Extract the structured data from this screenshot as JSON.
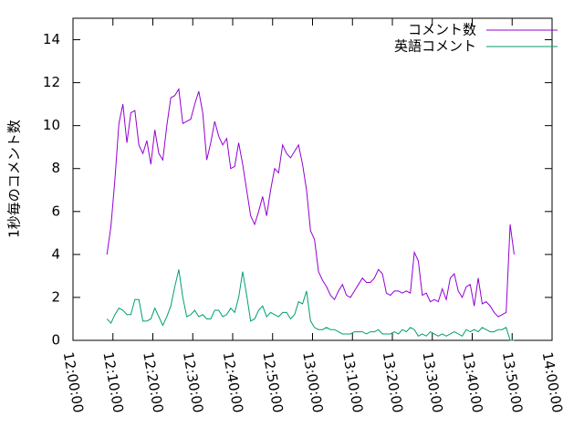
{
  "chart_data": {
    "type": "line",
    "y_label": "1秒毎のコメント数",
    "x": [
      "12:08:30",
      "12:09:30",
      "12:10:30",
      "12:11:30",
      "12:12:30",
      "12:13:30",
      "12:14:30",
      "12:15:30",
      "12:16:30",
      "12:17:30",
      "12:18:30",
      "12:19:30",
      "12:20:30",
      "12:21:30",
      "12:22:30",
      "12:23:30",
      "12:24:30",
      "12:25:30",
      "12:26:30",
      "12:27:30",
      "12:28:30",
      "12:29:30",
      "12:30:30",
      "12:31:30",
      "12:32:30",
      "12:33:30",
      "12:34:30",
      "12:35:30",
      "12:36:30",
      "12:37:30",
      "12:38:30",
      "12:39:30",
      "12:40:30",
      "12:41:30",
      "12:42:30",
      "12:43:30",
      "12:44:30",
      "12:45:30",
      "12:46:30",
      "12:47:30",
      "12:48:30",
      "12:49:30",
      "12:50:30",
      "12:51:30",
      "12:52:30",
      "12:53:30",
      "12:54:30",
      "12:55:30",
      "12:56:30",
      "12:57:30",
      "12:58:30",
      "12:59:30",
      "13:00:30",
      "13:01:30",
      "13:02:30",
      "13:03:30",
      "13:04:30",
      "13:05:30",
      "13:06:30",
      "13:07:30",
      "13:08:30",
      "13:09:30",
      "13:10:30",
      "13:11:30",
      "13:12:30",
      "13:13:30",
      "13:14:30",
      "13:15:30",
      "13:16:30",
      "13:17:30",
      "13:18:30",
      "13:19:30",
      "13:20:30",
      "13:21:30",
      "13:22:30",
      "13:23:30",
      "13:24:30",
      "13:25:30",
      "13:26:30",
      "13:27:30",
      "13:28:30",
      "13:29:30",
      "13:30:30",
      "13:31:30",
      "13:32:30",
      "13:33:30",
      "13:34:30",
      "13:35:30",
      "13:36:30",
      "13:37:30",
      "13:38:30",
      "13:39:30",
      "13:40:30",
      "13:41:30",
      "13:42:30",
      "13:43:30",
      "13:44:30",
      "13:45:30",
      "13:46:30",
      "13:47:30",
      "13:48:30",
      "13:49:30",
      "13:50:30"
    ],
    "series": [
      {
        "name": "コメント数",
        "color": "#9400d3",
        "values": [
          4.0,
          5.3,
          7.5,
          10.1,
          11.0,
          9.2,
          10.6,
          10.7,
          9.1,
          8.7,
          9.3,
          8.2,
          9.8,
          8.7,
          8.4,
          10.0,
          11.3,
          11.4,
          11.7,
          10.1,
          10.2,
          10.3,
          11.0,
          11.6,
          10.6,
          8.4,
          9.2,
          10.2,
          9.5,
          9.1,
          9.4,
          8.0,
          8.1,
          9.2,
          8.2,
          7.0,
          5.8,
          5.4,
          6.0,
          6.7,
          5.8,
          7.0,
          8.0,
          7.8,
          9.1,
          8.7,
          8.5,
          8.8,
          9.1,
          8.2,
          7.0,
          5.1,
          4.7,
          3.2,
          2.8,
          2.5,
          2.1,
          1.9,
          2.3,
          2.6,
          2.1,
          2.0,
          2.3,
          2.6,
          2.9,
          2.7,
          2.7,
          2.9,
          3.3,
          3.1,
          2.2,
          2.1,
          2.3,
          2.3,
          2.2,
          2.3,
          2.2,
          4.1,
          3.7,
          2.1,
          2.2,
          1.8,
          1.9,
          1.8,
          2.4,
          1.9,
          2.9,
          3.1,
          2.3,
          2.0,
          2.5,
          2.6,
          1.6,
          2.9,
          1.7,
          1.8,
          1.6,
          1.3,
          1.1,
          1.2,
          1.3,
          5.4,
          4.0
        ]
      },
      {
        "name": "英語コメント",
        "color": "#009e73",
        "values": [
          1.0,
          0.8,
          1.2,
          1.5,
          1.4,
          1.2,
          1.2,
          1.9,
          1.9,
          0.9,
          0.9,
          1.0,
          1.5,
          1.1,
          0.7,
          1.1,
          1.6,
          2.5,
          3.3,
          2.0,
          1.1,
          1.2,
          1.4,
          1.1,
          1.2,
          1.0,
          1.0,
          1.4,
          1.4,
          1.1,
          1.2,
          1.5,
          1.3,
          2.0,
          3.2,
          2.1,
          0.9,
          1.0,
          1.4,
          1.6,
          1.1,
          1.3,
          1.2,
          1.1,
          1.3,
          1.3,
          1.0,
          1.2,
          1.8,
          1.7,
          2.3,
          0.9,
          0.6,
          0.5,
          0.5,
          0.6,
          0.5,
          0.5,
          0.4,
          0.3,
          0.3,
          0.3,
          0.4,
          0.4,
          0.4,
          0.3,
          0.4,
          0.4,
          0.5,
          0.3,
          0.3,
          0.3,
          0.4,
          0.3,
          0.5,
          0.4,
          0.6,
          0.5,
          0.2,
          0.3,
          0.2,
          0.4,
          0.3,
          0.2,
          0.3,
          0.2,
          0.3,
          0.4,
          0.3,
          0.2,
          0.5,
          0.4,
          0.5,
          0.4,
          0.6,
          0.5,
          0.4,
          0.4,
          0.5,
          0.5,
          0.6,
          0.0,
          0.0
        ]
      }
    ],
    "xlim": [
      "12:00:00",
      "14:00:00"
    ],
    "xticks": [
      "12:00:00",
      "12:10:00",
      "12:20:00",
      "12:30:00",
      "12:40:00",
      "12:50:00",
      "13:00:00",
      "13:10:00",
      "13:20:00",
      "13:30:00",
      "13:40:00",
      "13:50:00",
      "14:00:00"
    ],
    "ylim": [
      0,
      15
    ],
    "yticks": [
      0,
      2,
      4,
      6,
      8,
      10,
      12,
      14
    ],
    "legend": "top-right"
  }
}
